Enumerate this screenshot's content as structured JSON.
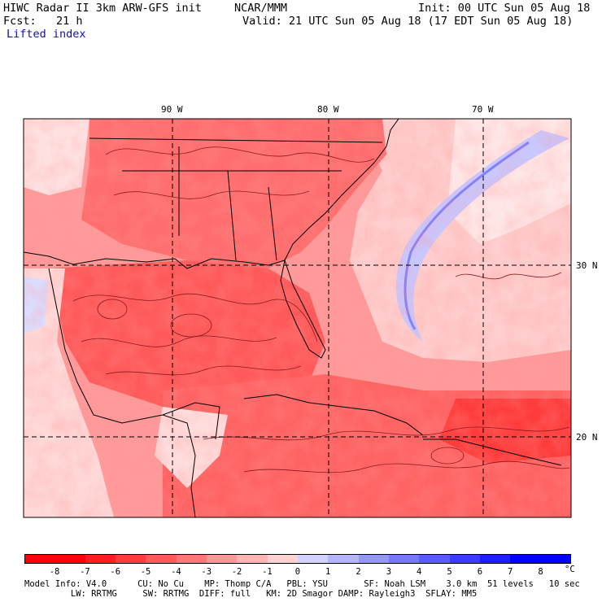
{
  "header": {
    "model_title": "HIWC Radar II 3km ARW-GFS init",
    "center": "NCAR/MMM",
    "init_time": "Init: 00 UTC Sun 05 Aug 18",
    "forecast": "Fcst:   21 h",
    "valid_time": "Valid: 21 UTC Sun 05 Aug 18 (17 EDT Sun 05 Aug 18)",
    "field_name": "Lifted index"
  },
  "map": {
    "lon_labels": [
      "90 W",
      "80 W",
      "70 W"
    ],
    "lat_labels": [
      "30 N",
      "20 N"
    ],
    "colors": {
      "frame": "#000000",
      "grid": "#000000",
      "contour": "#8b1a1a",
      "land_outline": "#000000"
    }
  },
  "colorbar": {
    "unit": "°C",
    "tick_labels": [
      "-8",
      "-7",
      "-6",
      "-5",
      "-4",
      "-3",
      "-2",
      "-1",
      "0",
      "1",
      "2",
      "3",
      "4",
      "5",
      "6",
      "7",
      "8"
    ],
    "colors": [
      "#ff0000",
      "#ff1e1e",
      "#ff3c3c",
      "#ff5a5a",
      "#ff7878",
      "#ff9696",
      "#ffb4b4",
      "#ffd2d2",
      "#ffffff",
      "#d2d2ff",
      "#b4b4ff",
      "#9696ff",
      "#7878ff",
      "#5a5aff",
      "#3c3cff",
      "#1e1eff",
      "#0000ff"
    ]
  },
  "footer": {
    "line1": "Model Info: V4.0      CU: No Cu    MP: Thomp C/A   PBL: YSU       SF: Noah LSM    3.0 km  51 levels   10 sec",
    "line2": "         LW: RRTMG     SW: RRTMG  DIFF: full   KM: 2D Smagor DAMP: Rayleigh3  SFLAY: MM5"
  }
}
